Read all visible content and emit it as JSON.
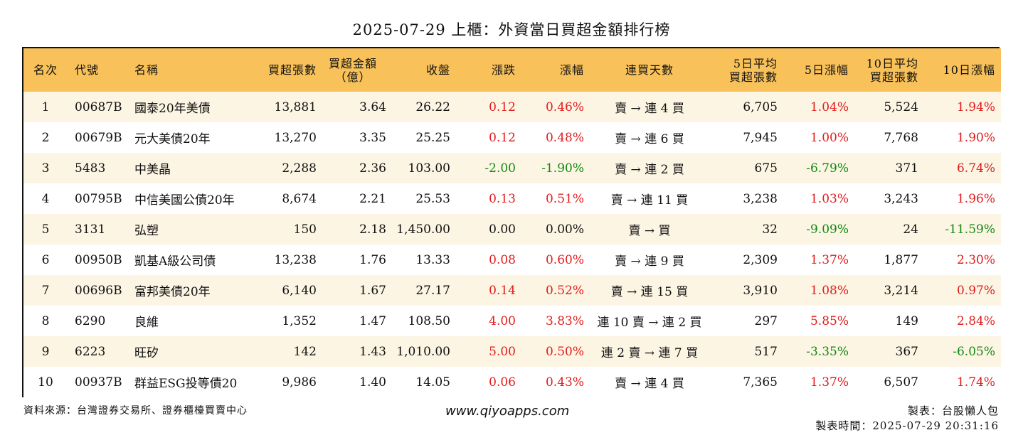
{
  "title": "2025-07-29 上櫃：外資當日買超金額排行榜",
  "columns": [
    {
      "key": "rank",
      "label": "名次"
    },
    {
      "key": "code",
      "label": "代號"
    },
    {
      "key": "name",
      "label": "名稱"
    },
    {
      "key": "net_buy_lots",
      "label": "買超張數"
    },
    {
      "key": "net_buy_amount",
      "label": "買超金額\n（億）"
    },
    {
      "key": "close",
      "label": "收盤"
    },
    {
      "key": "change",
      "label": "漲跌"
    },
    {
      "key": "pct",
      "label": "漲幅"
    },
    {
      "key": "streak",
      "label": "連買天數"
    },
    {
      "key": "avg5",
      "label": "5日平均\n買超張數"
    },
    {
      "key": "pct5",
      "label": "5日漲幅"
    },
    {
      "key": "avg10",
      "label": "10日平均\n買超張數"
    },
    {
      "key": "pct10",
      "label": "10日漲幅"
    }
  ],
  "colors": {
    "header_bg": "#f8c15a",
    "up": "#e21b1b",
    "down": "#118811",
    "flat": "#111111",
    "odd_row": "#fdf5e4"
  },
  "rows": [
    {
      "rank": "1",
      "code": "00687B",
      "name": "國泰20年美債",
      "net_buy_lots": "13,881",
      "net_buy_amount": "3.64",
      "close": "26.22",
      "change": "0.12",
      "pct": "0.46%",
      "streak": "賣 → 連 4 買",
      "avg5": "6,705",
      "pct5": "1.04%",
      "avg10": "5,524",
      "pct10": "1.94%",
      "dir": "up",
      "dir5": "up",
      "dir10": "up"
    },
    {
      "rank": "2",
      "code": "00679B",
      "name": "元大美債20年",
      "net_buy_lots": "13,270",
      "net_buy_amount": "3.35",
      "close": "25.25",
      "change": "0.12",
      "pct": "0.48%",
      "streak": "賣 → 連 6 買",
      "avg5": "7,945",
      "pct5": "1.00%",
      "avg10": "7,768",
      "pct10": "1.90%",
      "dir": "up",
      "dir5": "up",
      "dir10": "up"
    },
    {
      "rank": "3",
      "code": "5483",
      "name": "中美晶",
      "net_buy_lots": "2,288",
      "net_buy_amount": "2.36",
      "close": "103.00",
      "change": "-2.00",
      "pct": "-1.90%",
      "streak": "賣 → 連 2 買",
      "avg5": "675",
      "pct5": "-6.79%",
      "avg10": "371",
      "pct10": "6.74%",
      "dir": "down",
      "dir5": "down",
      "dir10": "up"
    },
    {
      "rank": "4",
      "code": "00795B",
      "name": "中信美國公債20年",
      "net_buy_lots": "8,674",
      "net_buy_amount": "2.21",
      "close": "25.53",
      "change": "0.13",
      "pct": "0.51%",
      "streak": "賣 → 連 11 買",
      "avg5": "3,238",
      "pct5": "1.03%",
      "avg10": "3,243",
      "pct10": "1.96%",
      "dir": "up",
      "dir5": "up",
      "dir10": "up"
    },
    {
      "rank": "5",
      "code": "3131",
      "name": "弘塑",
      "net_buy_lots": "150",
      "net_buy_amount": "2.18",
      "close": "1,450.00",
      "change": "0.00",
      "pct": "0.00%",
      "streak": "賣 → 買",
      "avg5": "32",
      "pct5": "-9.09%",
      "avg10": "24",
      "pct10": "-11.59%",
      "dir": "flat",
      "dir5": "down",
      "dir10": "down"
    },
    {
      "rank": "6",
      "code": "00950B",
      "name": "凱基A級公司債",
      "net_buy_lots": "13,238",
      "net_buy_amount": "1.76",
      "close": "13.33",
      "change": "0.08",
      "pct": "0.60%",
      "streak": "賣 → 連 9 買",
      "avg5": "2,309",
      "pct5": "1.37%",
      "avg10": "1,877",
      "pct10": "2.30%",
      "dir": "up",
      "dir5": "up",
      "dir10": "up"
    },
    {
      "rank": "7",
      "code": "00696B",
      "name": "富邦美債20年",
      "net_buy_lots": "6,140",
      "net_buy_amount": "1.67",
      "close": "27.17",
      "change": "0.14",
      "pct": "0.52%",
      "streak": "賣 → 連 15 買",
      "avg5": "3,910",
      "pct5": "1.08%",
      "avg10": "3,214",
      "pct10": "0.97%",
      "dir": "up",
      "dir5": "up",
      "dir10": "up"
    },
    {
      "rank": "8",
      "code": "6290",
      "name": "良維",
      "net_buy_lots": "1,352",
      "net_buy_amount": "1.47",
      "close": "108.50",
      "change": "4.00",
      "pct": "3.83%",
      "streak": "連 10 賣 → 連 2 買",
      "avg5": "297",
      "pct5": "5.85%",
      "avg10": "149",
      "pct10": "2.84%",
      "dir": "up",
      "dir5": "up",
      "dir10": "up"
    },
    {
      "rank": "9",
      "code": "6223",
      "name": "旺矽",
      "net_buy_lots": "142",
      "net_buy_amount": "1.43",
      "close": "1,010.00",
      "change": "5.00",
      "pct": "0.50%",
      "streak": "連 2 賣 → 連 7 買",
      "avg5": "517",
      "pct5": "-3.35%",
      "avg10": "367",
      "pct10": "-6.05%",
      "dir": "up",
      "dir5": "down",
      "dir10": "down"
    },
    {
      "rank": "10",
      "code": "00937B",
      "name": "群益ESG投等債20",
      "net_buy_lots": "9,986",
      "net_buy_amount": "1.40",
      "close": "14.05",
      "change": "0.06",
      "pct": "0.43%",
      "streak": "賣 → 連 4 買",
      "avg5": "7,365",
      "pct5": "1.37%",
      "avg10": "6,507",
      "pct10": "1.74%",
      "dir": "up",
      "dir5": "up",
      "dir10": "up"
    }
  ],
  "footer": {
    "source": "資料來源：台灣證券交易所、證券櫃檯買賣中心",
    "site": "www.qiyoapps.com",
    "author": "製表：台股懶人包",
    "time": "製表時間：2025-07-29 20:31:16"
  }
}
